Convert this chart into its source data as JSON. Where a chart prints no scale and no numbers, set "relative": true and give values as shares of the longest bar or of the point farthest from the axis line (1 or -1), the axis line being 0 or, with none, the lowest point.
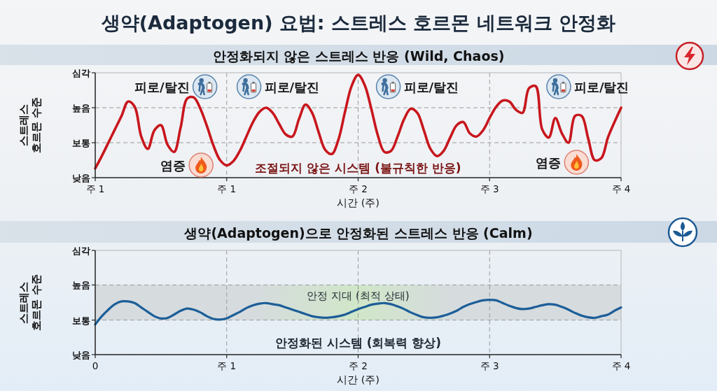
{
  "chart_data": [
    {
      "type": "line",
      "title": "생약(Adaptogen) 요법: 스트레스 호르몬 네트워크 안정화",
      "subtitle": "안정화되지 않은 스트레스 반응 (Wild, Chaos)",
      "xlabel": "시간 (주)",
      "ylabel": "스트레스\n호르몬 수준",
      "relative": true,
      "categories": [
        "주 1",
        null,
        null,
        null,
        null,
        null,
        null,
        null,
        null,
        null,
        null,
        null,
        null,
        null,
        null,
        null,
        null,
        null,
        null,
        null,
        "주 1",
        null,
        null,
        null,
        null,
        null,
        null,
        null,
        null,
        null,
        null,
        null,
        null,
        null,
        null,
        null,
        null,
        null,
        null,
        null,
        "주 2",
        null,
        null,
        null,
        null,
        null,
        null,
        null,
        null,
        null,
        null,
        null,
        null,
        null,
        null,
        null,
        null,
        null,
        null,
        null,
        "주 3",
        null,
        null,
        null,
        null,
        null,
        null,
        null,
        null,
        null,
        null,
        null,
        null,
        null,
        null,
        null,
        null,
        null,
        null,
        null,
        "주 4"
      ],
      "series": [
        {
          "color": "#c8161d",
          "values": [
            0.09,
            0.21,
            0.34,
            0.47,
            0.6,
            0.74,
            0.69,
            0.4,
            0.28,
            0.46,
            0.51,
            0.32,
            0.25,
            0.49,
            0.77,
            0.78,
            0.67,
            0.5,
            0.31,
            0.17,
            0.12,
            0.16,
            0.26,
            0.4,
            0.54,
            0.64,
            0.68,
            0.63,
            0.52,
            0.42,
            0.4,
            0.57,
            0.71,
            0.63,
            0.44,
            0.27,
            0.23,
            0.37,
            0.64,
            0.89,
            1,
            0.9,
            0.67,
            0.41,
            0.25,
            0.26,
            0.4,
            0.57,
            0.67,
            0.63,
            0.46,
            0.28,
            0.21,
            0.26,
            0.39,
            0.51,
            0.54,
            0.43,
            0.4,
            0.46,
            0.58,
            0.69,
            0.75,
            0.74,
            0.66,
            0.63,
            0.87,
            0.89,
            0.47,
            0.39,
            0.58,
            0.43,
            0.34,
            0.6,
            0.6,
            0.38,
            0.17,
            0.19,
            0.39,
            0.54,
            0.68
          ]
        }
      ],
      "grid": "x",
      "ref_lines": [
        {
          "axis": "y",
          "value": 0,
          "label": "낮음"
        },
        {
          "axis": "y",
          "value": 0.34,
          "label": "보통"
        },
        {
          "axis": "y",
          "value": 0.68,
          "label": "높음"
        },
        {
          "axis": "y",
          "value": 1.02,
          "label": "심각"
        }
      ],
      "annotations": [
        "피로/탈진",
        "피로/탈진",
        "피로/탈진",
        "피로/탈진",
        "염증",
        "염증",
        "조절되지 않은 시스템 (불규칙한 반응)"
      ]
    },
    {
      "type": "line",
      "subtitle": "생약(Adaptogen)으로 안정화된 스트레스 반응 (Calm)",
      "xlabel": "시간 (주)",
      "ylabel": "스트레스\n호르몬 수준",
      "relative": true,
      "categories": [
        "0",
        null,
        null,
        null,
        null,
        null,
        null,
        null,
        null,
        null,
        null,
        null,
        null,
        null,
        null,
        null,
        null,
        null,
        null,
        null,
        "주 1",
        null,
        null,
        null,
        null,
        null,
        null,
        null,
        null,
        null,
        null,
        null,
        null,
        null,
        null,
        null,
        null,
        null,
        null,
        null,
        "주 2",
        null,
        null,
        null,
        null,
        null,
        null,
        null,
        null,
        null,
        null,
        null,
        null,
        null,
        null,
        null,
        null,
        null,
        null,
        null,
        "주 3",
        null,
        null,
        null,
        null,
        null,
        null,
        null,
        null,
        null,
        null,
        null,
        null,
        null,
        null,
        null,
        null,
        null,
        null,
        null,
        "주 4"
      ],
      "series": [
        {
          "color": "#1c5e98",
          "values": [
            0.55,
            0.7,
            0.82,
            0.92,
            0.97,
            0.97,
            0.94,
            0.86,
            0.78,
            0.7,
            0.66,
            0.67,
            0.73,
            0.8,
            0.84,
            0.82,
            0.77,
            0.7,
            0.65,
            0.64,
            0.66,
            0.72,
            0.78,
            0.85,
            0.9,
            0.93,
            0.94,
            0.92,
            0.9,
            0.86,
            0.82,
            0.78,
            0.74,
            0.7,
            0.68,
            0.67,
            0.68,
            0.7,
            0.73,
            0.78,
            0.83,
            0.87,
            0.91,
            0.93,
            0.94,
            0.92,
            0.88,
            0.83,
            0.77,
            0.72,
            0.68,
            0.67,
            0.68,
            0.71,
            0.75,
            0.8,
            0.87,
            0.92,
            0.96,
            0.99,
            1,
            0.99,
            0.94,
            0.89,
            0.85,
            0.83,
            0.84,
            0.87,
            0.9,
            0.92,
            0.91,
            0.87,
            0.82,
            0.76,
            0.71,
            0.68,
            0.67,
            0.7,
            0.73,
            0.8,
            0.86
          ]
        }
      ],
      "grid": "x",
      "ref_lines": [
        {
          "axis": "y",
          "value": 0,
          "label": "낮음"
        },
        {
          "axis": "y",
          "value": 0.63,
          "label": "보통"
        },
        {
          "axis": "y",
          "value": 1.27,
          "label": "높음"
        },
        {
          "axis": "y",
          "value": 1.9,
          "label": "심각"
        }
      ],
      "bands": [
        {
          "axis": "y",
          "from": 0.63,
          "to": 1.27,
          "label": "안정 지대 (최적 상태)",
          "color": "#d5dadd"
        }
      ],
      "annotations": [
        "안정화된 시스템 (회복력 향상)"
      ]
    }
  ]
}
